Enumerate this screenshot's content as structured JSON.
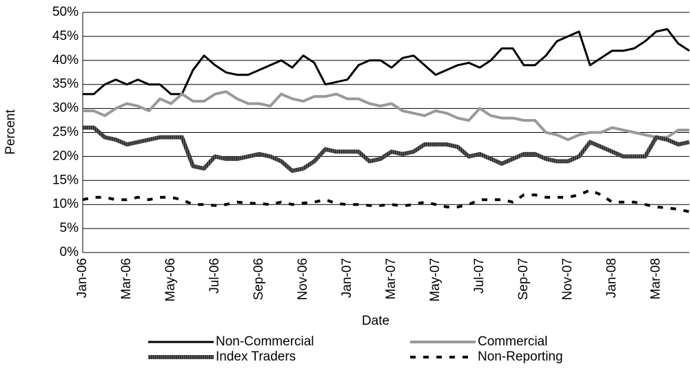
{
  "chart_data": {
    "type": "line",
    "x_label": "Date",
    "y_label": "Percent",
    "categories": [
      "Jan-06",
      null,
      null,
      null,
      "Mar-06",
      null,
      null,
      null,
      "May-06",
      null,
      null,
      null,
      "Jul-06",
      null,
      null,
      null,
      "Sep-06",
      null,
      null,
      null,
      "Nov-06",
      null,
      null,
      null,
      "Jan-07",
      null,
      null,
      null,
      "Mar-07",
      null,
      null,
      null,
      "May-07",
      null,
      null,
      null,
      "Jul-07",
      null,
      null,
      null,
      "Sep-07",
      null,
      null,
      null,
      "Nov-07",
      null,
      null,
      null,
      "Jan-08",
      null,
      null,
      null,
      "Mar-08",
      null,
      null,
      null
    ],
    "ylim": [
      0,
      50
    ],
    "yticks": [
      {
        "value": 0,
        "label": "0%"
      },
      {
        "value": 5,
        "label": "5%"
      },
      {
        "value": 10,
        "label": "10%"
      },
      {
        "value": 15,
        "label": "15%"
      },
      {
        "value": 20,
        "label": "20%"
      },
      {
        "value": 25,
        "label": "25%"
      },
      {
        "value": 30,
        "label": "30%"
      },
      {
        "value": 35,
        "label": "35%"
      },
      {
        "value": 40,
        "label": "40%"
      },
      {
        "value": 45,
        "label": "45%"
      },
      {
        "value": 50,
        "label": "50%"
      }
    ],
    "grid": true,
    "series": [
      {
        "name": "Non-Commercial",
        "color": "#000000",
        "style": "solid",
        "values": [
          33,
          33,
          35,
          36,
          35,
          36,
          35,
          35,
          33,
          33,
          38,
          41,
          39,
          37.5,
          37,
          37,
          38,
          39,
          40,
          38.5,
          41,
          39.5,
          35,
          35.5,
          36,
          39,
          40,
          40,
          38.5,
          40.5,
          41,
          39,
          37,
          38,
          39,
          39.5,
          38.5,
          40,
          42.5,
          42.5,
          39,
          39,
          41,
          44,
          45,
          46,
          39,
          40.5,
          42,
          42,
          42.5,
          44,
          46,
          46.5,
          43.5,
          42
        ]
      },
      {
        "name": "Commercial",
        "color": "#999999",
        "style": "solid",
        "values": [
          29.5,
          29.5,
          28.5,
          30,
          31,
          30.5,
          29.5,
          32,
          31,
          33,
          31.5,
          31.5,
          33,
          33.5,
          32,
          31,
          31,
          30.5,
          33,
          32,
          31.5,
          32.5,
          32.5,
          33,
          32,
          32,
          31,
          30.5,
          31,
          29.5,
          29,
          28.5,
          29.5,
          29,
          28,
          27.5,
          30,
          28.5,
          28,
          28,
          27.5,
          27.5,
          25,
          24.5,
          23.5,
          24.5,
          25,
          25,
          26,
          25.5,
          25,
          24.5,
          24,
          24,
          25.5,
          25.5
        ]
      },
      {
        "name": "Index Traders",
        "color": "#444444",
        "style": "hatched",
        "values": [
          26,
          26,
          24,
          23.5,
          22.5,
          23,
          23.5,
          24,
          24,
          24,
          18,
          17.5,
          20,
          19.5,
          19.5,
          20,
          20.5,
          20,
          19,
          17,
          17.5,
          19,
          21.5,
          21,
          21,
          21,
          19,
          19.5,
          21,
          20.5,
          21,
          22.5,
          22.5,
          22.5,
          22,
          20,
          20.5,
          19.5,
          18.5,
          19.5,
          20.5,
          20.5,
          19.5,
          19,
          19,
          20,
          23,
          22,
          21,
          20,
          20,
          20,
          24,
          23.5,
          22.5,
          23
        ]
      },
      {
        "name": "Non-Reporting",
        "color": "#000000",
        "style": "dashed",
        "values": [
          11,
          11.5,
          11.5,
          11,
          11,
          11.5,
          11,
          11.5,
          11.5,
          11,
          10,
          10,
          9.8,
          10,
          10.5,
          10.3,
          10.2,
          10,
          10.5,
          10,
          10.3,
          10.5,
          11,
          10.2,
          10,
          10,
          9.8,
          9.8,
          10,
          9.7,
          10,
          10.5,
          10,
          9.5,
          9.5,
          10,
          11,
          11,
          11,
          10.5,
          12,
          12,
          11.5,
          11.5,
          11.5,
          12,
          13,
          12,
          10.5,
          10.5,
          10.5,
          10,
          9.5,
          9.3,
          9,
          8.5
        ]
      }
    ]
  }
}
